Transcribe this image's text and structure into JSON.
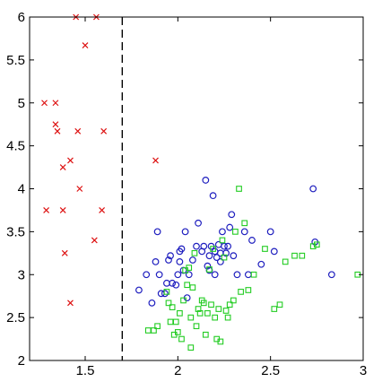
{
  "chart_data": {
    "type": "scatter",
    "title": "",
    "xlabel": "",
    "ylabel": "",
    "xlim": [
      1.2,
      3.0
    ],
    "ylim": [
      2.0,
      6.0
    ],
    "grid": false,
    "x_ticks": [
      {
        "value": 1.5,
        "label": "1.5"
      },
      {
        "value": 2.0,
        "label": "2"
      },
      {
        "value": 2.5,
        "label": "2.5"
      },
      {
        "value": 3.0,
        "label": "3"
      }
    ],
    "y_ticks": [
      {
        "value": 2.0,
        "label": "2"
      },
      {
        "value": 2.5,
        "label": "2.5"
      },
      {
        "value": 3.0,
        "label": "3"
      },
      {
        "value": 3.5,
        "label": "3.5"
      },
      {
        "value": 4.0,
        "label": "4"
      },
      {
        "value": 4.5,
        "label": "4.5"
      },
      {
        "value": 5.0,
        "label": "5"
      },
      {
        "value": 5.5,
        "label": "5.5"
      },
      {
        "value": 6.0,
        "label": "6"
      }
    ],
    "reference_lines": [
      {
        "orientation": "vertical",
        "x": 1.7,
        "style": "dashed",
        "color": "#000000"
      }
    ],
    "series": [
      {
        "marker": "x",
        "color": "#dd1111",
        "points": [
          [
            1.45,
            6.0
          ],
          [
            1.56,
            6.0
          ],
          [
            1.5,
            5.67
          ],
          [
            1.28,
            5.0
          ],
          [
            1.34,
            5.0
          ],
          [
            1.34,
            4.75
          ],
          [
            1.35,
            4.67
          ],
          [
            1.46,
            4.67
          ],
          [
            1.6,
            4.67
          ],
          [
            1.42,
            4.33
          ],
          [
            1.88,
            4.33
          ],
          [
            1.38,
            4.25
          ],
          [
            1.47,
            4.0
          ],
          [
            1.29,
            3.75
          ],
          [
            1.38,
            3.75
          ],
          [
            1.59,
            3.75
          ],
          [
            1.55,
            3.4
          ],
          [
            1.39,
            3.25
          ],
          [
            1.42,
            2.67
          ]
        ]
      },
      {
        "marker": "o",
        "color": "#1f1fbf",
        "points": [
          [
            1.79,
            2.82
          ],
          [
            1.83,
            3.0
          ],
          [
            1.86,
            2.67
          ],
          [
            1.88,
            3.15
          ],
          [
            1.89,
            3.5
          ],
          [
            1.9,
            3.0
          ],
          [
            1.91,
            2.78
          ],
          [
            1.93,
            2.78
          ],
          [
            1.94,
            2.9
          ],
          [
            1.95,
            3.17
          ],
          [
            1.96,
            3.22
          ],
          [
            1.97,
            2.9
          ],
          [
            1.99,
            2.88
          ],
          [
            2.0,
            3.0
          ],
          [
            2.01,
            3.27
          ],
          [
            2.01,
            3.15
          ],
          [
            2.02,
            3.3
          ],
          [
            2.03,
            3.05
          ],
          [
            2.04,
            3.5
          ],
          [
            2.05,
            2.73
          ],
          [
            2.06,
            3.0
          ],
          [
            2.08,
            3.17
          ],
          [
            2.1,
            3.33
          ],
          [
            2.11,
            3.6
          ],
          [
            2.13,
            3.27
          ],
          [
            2.14,
            3.33
          ],
          [
            2.15,
            4.1
          ],
          [
            2.16,
            3.1
          ],
          [
            2.17,
            3.22
          ],
          [
            2.17,
            3.05
          ],
          [
            2.18,
            3.33
          ],
          [
            2.19,
            3.92
          ],
          [
            2.2,
            3.27
          ],
          [
            2.2,
            3.0
          ],
          [
            2.21,
            3.2
          ],
          [
            2.22,
            3.35
          ],
          [
            2.23,
            3.15
          ],
          [
            2.23,
            3.25
          ],
          [
            2.24,
            3.5
          ],
          [
            2.25,
            3.33
          ],
          [
            2.26,
            3.25
          ],
          [
            2.27,
            3.33
          ],
          [
            2.28,
            3.55
          ],
          [
            2.29,
            3.7
          ],
          [
            2.3,
            3.22
          ],
          [
            2.32,
            3.0
          ],
          [
            2.36,
            3.5
          ],
          [
            2.38,
            3.0
          ],
          [
            2.4,
            3.4
          ],
          [
            2.45,
            3.12
          ],
          [
            2.5,
            3.5
          ],
          [
            2.52,
            3.27
          ],
          [
            2.73,
            4.0
          ],
          [
            2.74,
            3.38
          ],
          [
            2.83,
            3.0
          ]
        ]
      },
      {
        "marker": "s",
        "color": "#22cc22",
        "points": [
          [
            1.84,
            2.35
          ],
          [
            1.87,
            2.35
          ],
          [
            1.89,
            2.4
          ],
          [
            1.94,
            2.8
          ],
          [
            1.95,
            2.67
          ],
          [
            1.96,
            2.45
          ],
          [
            1.97,
            2.62
          ],
          [
            1.98,
            2.3
          ],
          [
            1.99,
            2.45
          ],
          [
            2.0,
            2.33
          ],
          [
            2.01,
            2.55
          ],
          [
            2.02,
            2.25
          ],
          [
            2.03,
            2.7
          ],
          [
            2.04,
            3.05
          ],
          [
            2.05,
            2.88
          ],
          [
            2.06,
            3.08
          ],
          [
            2.07,
            2.5
          ],
          [
            2.07,
            2.15
          ],
          [
            2.08,
            2.85
          ],
          [
            2.09,
            3.25
          ],
          [
            2.1,
            2.4
          ],
          [
            2.11,
            2.6
          ],
          [
            2.12,
            2.55
          ],
          [
            2.13,
            2.7
          ],
          [
            2.14,
            2.67
          ],
          [
            2.15,
            2.3
          ],
          [
            2.16,
            2.55
          ],
          [
            2.17,
            3.06
          ],
          [
            2.18,
            2.65
          ],
          [
            2.19,
            3.3
          ],
          [
            2.2,
            2.5
          ],
          [
            2.21,
            2.25
          ],
          [
            2.22,
            2.6
          ],
          [
            2.23,
            2.22
          ],
          [
            2.24,
            3.4
          ],
          [
            2.25,
            3.2
          ],
          [
            2.26,
            2.58
          ],
          [
            2.27,
            2.5
          ],
          [
            2.28,
            2.65
          ],
          [
            2.3,
            2.7
          ],
          [
            2.31,
            3.5
          ],
          [
            2.33,
            4.0
          ],
          [
            2.34,
            2.8
          ],
          [
            2.36,
            3.6
          ],
          [
            2.38,
            2.82
          ],
          [
            2.41,
            3.0
          ],
          [
            2.47,
            3.3
          ],
          [
            2.52,
            2.6
          ],
          [
            2.55,
            2.65
          ],
          [
            2.58,
            3.15
          ],
          [
            2.63,
            3.22
          ],
          [
            2.67,
            3.22
          ],
          [
            2.73,
            3.33
          ],
          [
            2.75,
            3.35
          ],
          [
            2.97,
            3.0
          ]
        ]
      }
    ]
  }
}
